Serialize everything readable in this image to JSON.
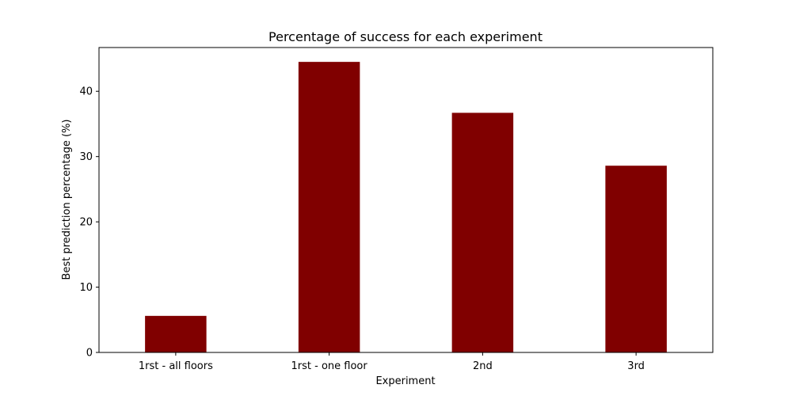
{
  "chart_data": {
    "type": "bar",
    "title": "Percentage of success for each experiment",
    "xlabel": "Experiment",
    "ylabel": "Best prediction percentage (%)",
    "categories": [
      "1rst - all floors",
      "1rst - one floor",
      "2nd",
      "3rd"
    ],
    "values": [
      5.6,
      44.5,
      36.7,
      28.6
    ],
    "ylim": [
      0,
      46.7
    ],
    "yticks": [
      0,
      10,
      20,
      30,
      40
    ],
    "bar_color": "#800000",
    "grid": false
  }
}
